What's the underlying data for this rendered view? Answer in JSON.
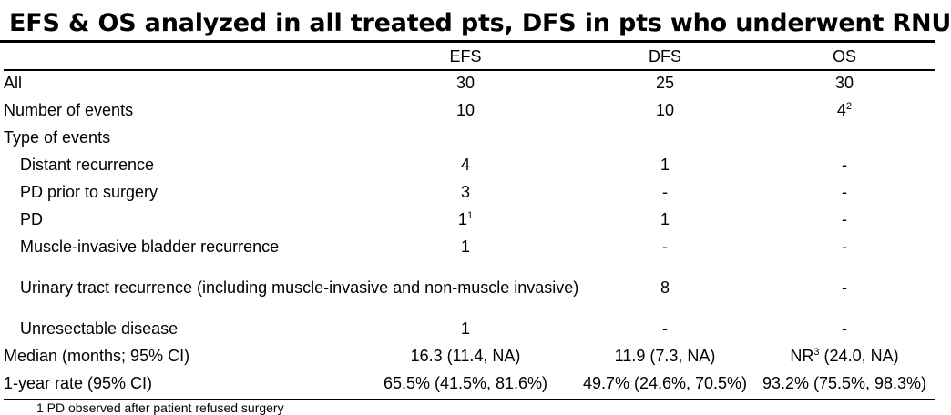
{
  "title": "EFS & OS analyzed in all treated pts, DFS in pts who underwent RNU",
  "columns": [
    "EFS",
    "DFS",
    "OS"
  ],
  "rows": [
    {
      "label": "All",
      "efs": "30",
      "dfs": "25",
      "os": "30"
    },
    {
      "label": "Number of events",
      "efs": "10",
      "dfs": "10",
      "os": "4",
      "os_sup": "2"
    },
    {
      "label": "Type of events",
      "efs": "",
      "dfs": "",
      "os": ""
    },
    {
      "label": "Distant recurrence",
      "efs": "4",
      "dfs": "1",
      "os": "-"
    },
    {
      "label": "PD prior to surgery",
      "efs": "3",
      "dfs": "-",
      "os": "-"
    },
    {
      "label": "PD",
      "efs": "1",
      "efs_sup": "1",
      "dfs": "1",
      "os": "-"
    },
    {
      "label": "Muscle-invasive bladder recurrence",
      "efs": "1",
      "dfs": "-",
      "os": "-"
    },
    {
      "label": "Urinary tract recurrence (including muscle-invasive and non-muscle invasive)",
      "efs": "-",
      "dfs": "8",
      "os": "-"
    },
    {
      "label": "Unresectable disease",
      "efs": "1",
      "dfs": "-",
      "os": "-"
    },
    {
      "label": "Median (months; 95% CI)",
      "efs": "16.3 (11.4, NA)",
      "dfs": "11.9 (7.3, NA)",
      "os_prefix": "NR",
      "os_sup": "3",
      "os": " (24.0, NA)"
    },
    {
      "label": "1-year rate (95% CI)",
      "efs": "65.5% (41.5%, 81.6%)",
      "dfs": "49.7% (24.6%, 70.5%)",
      "os": "93.2% (75.5%, 98.3%)"
    }
  ],
  "footnote": "1    PD observed after patient refused surgery"
}
